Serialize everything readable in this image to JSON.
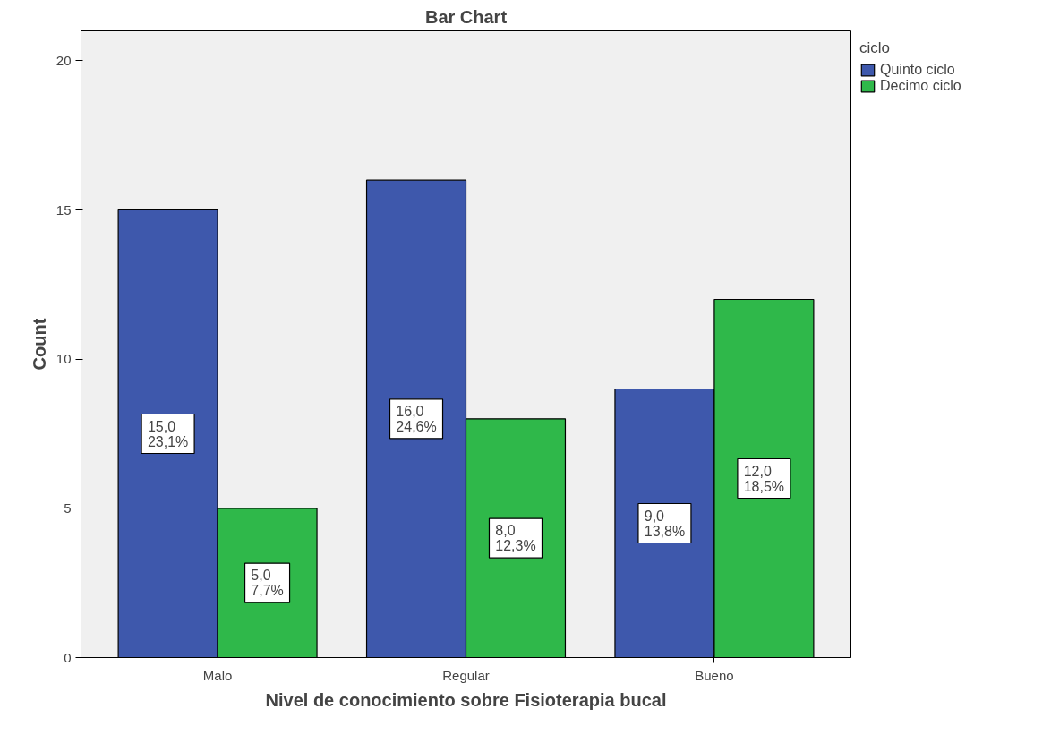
{
  "chart_data": {
    "type": "bar",
    "title": "Bar Chart",
    "xlabel": "Nivel de conocimiento sobre Fisioterapia bucal",
    "ylabel": "Count",
    "legend_title": "ciclo",
    "categories": [
      "Malo",
      "Regular",
      "Bueno"
    ],
    "series": [
      {
        "name": "Quinto ciclo",
        "color": "#3e58ac",
        "values": [
          15,
          16,
          9
        ],
        "value_labels": [
          "15,0\n23,1%",
          "16,0\n24,6%",
          "9,0\n13,8%"
        ]
      },
      {
        "name": "Decimo ciclo",
        "color": "#2fb84a",
        "values": [
          5,
          8,
          12
        ],
        "value_labels": [
          "5,0\n7,7%",
          "8,0\n12,3%",
          "12,0\n18,5%"
        ]
      }
    ],
    "ylim": [
      0,
      21
    ],
    "yticks": [
      0,
      5,
      10,
      15,
      20
    ],
    "grid": false,
    "legend": "top right"
  }
}
